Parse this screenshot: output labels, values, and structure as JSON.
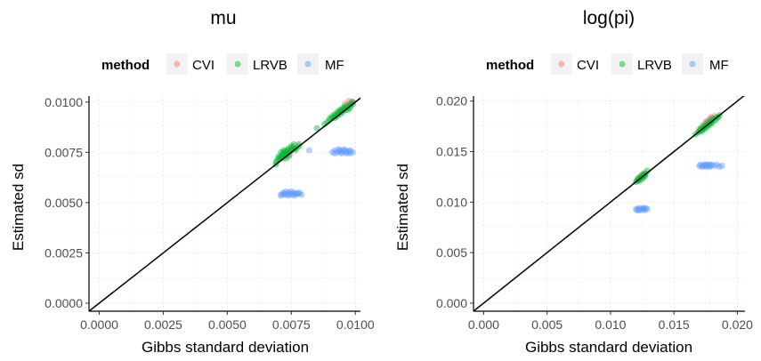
{
  "colors": {
    "CVI": "#F8766D",
    "LRVB": "#00BA38",
    "MF": "#619CFF",
    "identity_line": "#000000",
    "grid_major": "#e5e5e5",
    "grid_minor": "#f2f2f2",
    "legend_key_bg": "#f2f2f2"
  },
  "legend": {
    "title": "method",
    "entries": [
      "CVI",
      "LRVB",
      "MF"
    ],
    "position": "top"
  },
  "chart_data": [
    {
      "type": "scatter",
      "title": "mu",
      "xlabel": "Gibbs standard deviation",
      "ylabel": "Estimated sd",
      "xlim": [
        -0.0004,
        0.0102
      ],
      "ylim": [
        -0.0004,
        0.0103
      ],
      "xticks": [
        0.0,
        0.0025,
        0.005,
        0.0075,
        0.01
      ],
      "yticks": [
        0.0,
        0.0025,
        0.005,
        0.0075,
        0.01
      ],
      "xtick_labels": [
        "0.0000",
        "0.0025",
        "0.0050",
        "0.0075",
        "0.0100"
      ],
      "ytick_labels": [
        "0.0000",
        "0.0025",
        "0.0050",
        "0.0075",
        "0.0100"
      ],
      "grid": true,
      "reference_line": "y = x",
      "series": [
        {
          "name": "CVI",
          "points": [
            [
              0.00705,
              0.00715
            ],
            [
              0.0071,
              0.00725
            ],
            [
              0.00715,
              0.00735
            ],
            [
              0.0072,
              0.0074
            ],
            [
              0.00725,
              0.00745
            ],
            [
              0.0073,
              0.00735
            ],
            [
              0.0074,
              0.0075
            ],
            [
              0.00735,
              0.0076
            ],
            [
              0.0075,
              0.0077
            ],
            [
              0.0076,
              0.0078
            ],
            [
              0.0072,
              0.0072
            ],
            [
              0.00745,
              0.0074
            ],
            [
              0.0092,
              0.0093
            ],
            [
              0.0093,
              0.0094
            ],
            [
              0.0094,
              0.0095
            ],
            [
              0.0095,
              0.0096
            ],
            [
              0.0096,
              0.0097
            ],
            [
              0.0097,
              0.0098
            ],
            [
              0.0098,
              0.0099
            ],
            [
              0.0099,
              0.01
            ],
            [
              0.00975,
              0.01005
            ],
            [
              0.0096,
              0.0099
            ],
            [
              0.0094,
              0.0096
            ],
            [
              0.00985,
              0.01
            ]
          ]
        },
        {
          "name": "LRVB",
          "points": [
            [
              0.0069,
              0.007
            ],
            [
              0.00695,
              0.0071
            ],
            [
              0.007,
              0.0072
            ],
            [
              0.0071,
              0.0073
            ],
            [
              0.00715,
              0.0074
            ],
            [
              0.0072,
              0.0075
            ],
            [
              0.0073,
              0.0076
            ],
            [
              0.0074,
              0.0077
            ],
            [
              0.0075,
              0.0078
            ],
            [
              0.0076,
              0.0079
            ],
            [
              0.0071,
              0.0072
            ],
            [
              0.0072,
              0.0073
            ],
            [
              0.00725,
              0.0074
            ],
            [
              0.0073,
              0.0074
            ],
            [
              0.0074,
              0.0075
            ],
            [
              0.00735,
              0.0075
            ],
            [
              0.0075,
              0.0076
            ],
            [
              0.0077,
              0.0077
            ],
            [
              0.0078,
              0.0078
            ],
            [
              0.0078,
              0.0079
            ],
            [
              0.0072,
              0.0076
            ],
            [
              0.0071,
              0.0075
            ],
            [
              0.007,
              0.0073
            ],
            [
              0.0073,
              0.0072
            ],
            [
              0.0074,
              0.0073
            ],
            [
              0.00745,
              0.0076
            ],
            [
              0.0076,
              0.0077
            ],
            [
              0.00765,
              0.0076
            ],
            [
              0.0069,
              0.0069
            ],
            [
              0.00755,
              0.0077
            ],
            [
              0.0085,
              0.0087
            ],
            [
              0.0088,
              0.0089
            ],
            [
              0.0089,
              0.009
            ],
            [
              0.009,
              0.0091
            ],
            [
              0.0091,
              0.0092
            ],
            [
              0.0092,
              0.0093
            ],
            [
              0.0093,
              0.0094
            ],
            [
              0.0094,
              0.0095
            ],
            [
              0.0095,
              0.0096
            ],
            [
              0.0096,
              0.0097
            ],
            [
              0.0097,
              0.0098
            ],
            [
              0.0098,
              0.0099
            ],
            [
              0.0099,
              0.0099
            ],
            [
              0.0092,
              0.0094
            ],
            [
              0.0093,
              0.0095
            ],
            [
              0.0094,
              0.0094
            ],
            [
              0.0095,
              0.0095
            ],
            [
              0.0096,
              0.0096
            ],
            [
              0.0097,
              0.0097
            ],
            [
              0.0098,
              0.0098
            ],
            [
              0.0091,
              0.0093
            ],
            [
              0.0093,
              0.0093
            ],
            [
              0.0095,
              0.0097
            ],
            [
              0.0096,
              0.0098
            ],
            [
              0.0099,
              0.01
            ],
            [
              0.009,
              0.0092
            ],
            [
              0.0094,
              0.0096
            ],
            [
              0.0097,
              0.0096
            ],
            [
              0.0098,
              0.0097
            ],
            [
              0.0092,
              0.0092
            ]
          ]
        },
        {
          "name": "MF",
          "points": [
            [
              0.0071,
              0.0054
            ],
            [
              0.0072,
              0.0055
            ],
            [
              0.0073,
              0.0054
            ],
            [
              0.0074,
              0.0055
            ],
            [
              0.0075,
              0.0054
            ],
            [
              0.0076,
              0.0055
            ],
            [
              0.0077,
              0.0054
            ],
            [
              0.0078,
              0.0055
            ],
            [
              0.0079,
              0.0054
            ],
            [
              0.0072,
              0.00545
            ],
            [
              0.0074,
              0.00535
            ],
            [
              0.0076,
              0.00545
            ],
            [
              0.0073,
              0.00555
            ],
            [
              0.0075,
              0.00555
            ],
            [
              0.0077,
              0.00545
            ],
            [
              0.0071,
              0.00535
            ],
            [
              0.0078,
              0.00545
            ],
            [
              0.0074,
              0.00545
            ],
            [
              0.0076,
              0.00535
            ],
            [
              0.00725,
              0.0054
            ],
            [
              0.0082,
              0.0076
            ],
            [
              0.0091,
              0.0075
            ],
            [
              0.0092,
              0.0076
            ],
            [
              0.0093,
              0.0075
            ],
            [
              0.0094,
              0.0076
            ],
            [
              0.0095,
              0.0075
            ],
            [
              0.0096,
              0.0076
            ],
            [
              0.0097,
              0.0075
            ],
            [
              0.0098,
              0.0076
            ],
            [
              0.0099,
              0.0075
            ],
            [
              0.00935,
              0.00765
            ],
            [
              0.00945,
              0.00745
            ],
            [
              0.00955,
              0.00765
            ],
            [
              0.00965,
              0.00745
            ],
            [
              0.00975,
              0.00755
            ],
            [
              0.0092,
              0.00745
            ],
            [
              0.0098,
              0.00745
            ],
            [
              0.0094,
              0.00755
            ],
            [
              0.0096,
              0.00755
            ]
          ]
        }
      ]
    },
    {
      "type": "scatter",
      "title": "log(pi)",
      "xlabel": "Gibbs standard deviation",
      "ylabel": "Estimated sd",
      "xlim": [
        -0.0008,
        0.0206
      ],
      "ylim": [
        -0.0008,
        0.0205
      ],
      "xticks": [
        0.0,
        0.005,
        0.01,
        0.015,
        0.02
      ],
      "yticks": [
        0.0,
        0.005,
        0.01,
        0.015,
        0.02
      ],
      "xtick_labels": [
        "0.000",
        "0.005",
        "0.010",
        "0.015",
        "0.020"
      ],
      "ytick_labels": [
        "0.000",
        "0.005",
        "0.010",
        "0.015",
        "0.020"
      ],
      "grid": true,
      "reference_line": "y = x",
      "series": [
        {
          "name": "CVI",
          "points": [
            [
              0.0121,
              0.0122
            ],
            [
              0.0123,
              0.0124
            ],
            [
              0.0125,
              0.0127
            ],
            [
              0.0127,
              0.0129
            ],
            [
              0.017,
              0.0172
            ],
            [
              0.0173,
              0.0176
            ],
            [
              0.0176,
              0.018
            ],
            [
              0.0178,
              0.0182
            ],
            [
              0.018,
              0.0183
            ],
            [
              0.0182,
              0.0185
            ],
            [
              0.0175,
              0.0179
            ],
            [
              0.0179,
              0.0184
            ]
          ]
        },
        {
          "name": "LRVB",
          "points": [
            [
              0.012,
              0.012
            ],
            [
              0.0121,
              0.0121
            ],
            [
              0.0122,
              0.0122
            ],
            [
              0.0123,
              0.0123
            ],
            [
              0.0124,
              0.0124
            ],
            [
              0.0125,
              0.0125
            ],
            [
              0.0126,
              0.0126
            ],
            [
              0.0127,
              0.0127
            ],
            [
              0.0128,
              0.0128
            ],
            [
              0.0122,
              0.0124
            ],
            [
              0.0124,
              0.0126
            ],
            [
              0.0126,
              0.0128
            ],
            [
              0.0123,
              0.0121
            ],
            [
              0.0125,
              0.0123
            ],
            [
              0.0127,
              0.0125
            ],
            [
              0.0129,
              0.0131
            ],
            [
              0.0167,
              0.0167
            ],
            [
              0.0169,
              0.0169
            ],
            [
              0.017,
              0.017
            ],
            [
              0.0171,
              0.0171
            ],
            [
              0.0172,
              0.0172
            ],
            [
              0.0173,
              0.0173
            ],
            [
              0.0174,
              0.0174
            ],
            [
              0.0175,
              0.0175
            ],
            [
              0.0176,
              0.0176
            ],
            [
              0.0177,
              0.0177
            ],
            [
              0.0178,
              0.0178
            ],
            [
              0.0179,
              0.0179
            ],
            [
              0.018,
              0.018
            ],
            [
              0.0182,
              0.0182
            ],
            [
              0.0184,
              0.0184
            ],
            [
              0.0186,
              0.0186
            ],
            [
              0.0171,
              0.0173
            ],
            [
              0.0173,
              0.0175
            ],
            [
              0.0175,
              0.0177
            ],
            [
              0.0177,
              0.0179
            ],
            [
              0.0179,
              0.0181
            ],
            [
              0.0181,
              0.0183
            ],
            [
              0.0172,
              0.017
            ],
            [
              0.0174,
              0.0172
            ],
            [
              0.0176,
              0.0174
            ],
            [
              0.0178,
              0.0176
            ],
            [
              0.018,
              0.0178
            ],
            [
              0.0183,
              0.0181
            ],
            [
              0.0185,
              0.0184
            ]
          ]
        },
        {
          "name": "MF",
          "points": [
            [
              0.012,
              0.0093
            ],
            [
              0.0121,
              0.0092
            ],
            [
              0.0122,
              0.0094
            ],
            [
              0.0123,
              0.0093
            ],
            [
              0.0124,
              0.0092
            ],
            [
              0.0125,
              0.0094
            ],
            [
              0.0126,
              0.0093
            ],
            [
              0.0127,
              0.0092
            ],
            [
              0.0128,
              0.0094
            ],
            [
              0.0129,
              0.0093
            ],
            [
              0.0122,
              0.0092
            ],
            [
              0.0126,
              0.0094
            ],
            [
              0.017,
              0.0136
            ],
            [
              0.0171,
              0.0137
            ],
            [
              0.0172,
              0.0135
            ],
            [
              0.0173,
              0.0136
            ],
            [
              0.0174,
              0.0137
            ],
            [
              0.0175,
              0.0135
            ],
            [
              0.0176,
              0.0136
            ],
            [
              0.0177,
              0.0137
            ],
            [
              0.0178,
              0.0135
            ],
            [
              0.0179,
              0.0136
            ],
            [
              0.018,
              0.0137
            ],
            [
              0.0182,
              0.0136
            ],
            [
              0.0184,
              0.0137
            ],
            [
              0.0186,
              0.0135
            ],
            [
              0.0188,
              0.0136
            ],
            [
              0.0175,
              0.0137
            ],
            [
              0.0178,
              0.0137
            ]
          ]
        }
      ]
    }
  ]
}
